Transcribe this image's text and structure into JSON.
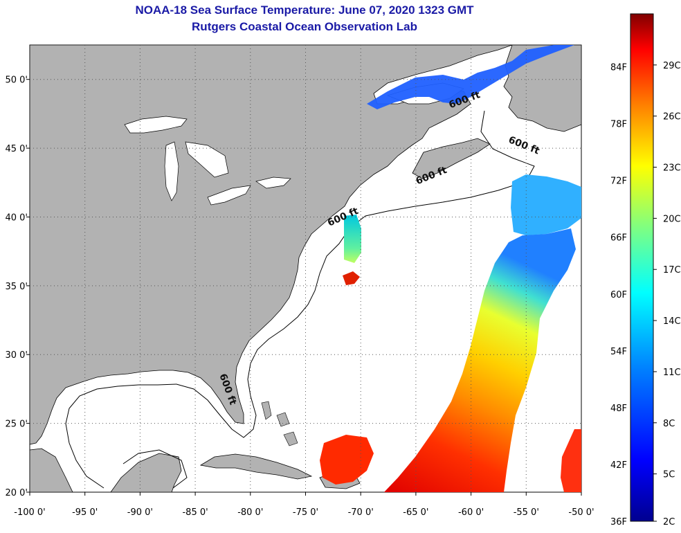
{
  "header": {
    "title": "NOAA-18 Sea Surface Temperature:  June 07, 2020 1323 GMT",
    "subtitle": "Rutgers Coastal Ocean Observation Lab"
  },
  "map": {
    "lon_range": [
      -100,
      -50
    ],
    "lat_range": [
      20,
      52.5
    ],
    "lon_ticks": [
      {
        "value": -100,
        "label": "-100 0'"
      },
      {
        "value": -95,
        "label": "-95 0'"
      },
      {
        "value": -90,
        "label": "-90 0'"
      },
      {
        "value": -85,
        "label": "-85 0'"
      },
      {
        "value": -80,
        "label": "-80 0'"
      },
      {
        "value": -75,
        "label": "-75 0'"
      },
      {
        "value": -70,
        "label": "-70 0'"
      },
      {
        "value": -65,
        "label": "-65 0'"
      },
      {
        "value": -60,
        "label": "-60 0'"
      },
      {
        "value": -55,
        "label": "-55 0'"
      },
      {
        "value": -50,
        "label": "-50 0'"
      }
    ],
    "lat_ticks": [
      {
        "value": 20,
        "label": "20 0'"
      },
      {
        "value": 25,
        "label": "25 0'"
      },
      {
        "value": 30,
        "label": "30 0'"
      },
      {
        "value": 35,
        "label": "35 0'"
      },
      {
        "value": 40,
        "label": "40 0'"
      },
      {
        "value": 45,
        "label": "45 0'"
      },
      {
        "value": 50,
        "label": "50 0'"
      }
    ],
    "grid": "dotted",
    "land_color": "#b2b2b2",
    "contour_labels": [
      {
        "text": "600 ft",
        "lon": -60.5,
        "lat": 48.3
      },
      {
        "text": "600 ft",
        "lon": -55.3,
        "lat": 45.0
      },
      {
        "text": "600 ft",
        "lon": -63.5,
        "lat": 42.8
      },
      {
        "text": "600 ft",
        "lon": -71.5,
        "lat": 39.8
      },
      {
        "text": "600 ft",
        "lon": -82.3,
        "lat": 27.4
      }
    ]
  },
  "colorbar": {
    "fahrenheit": [
      {
        "value": 84,
        "label": "84F"
      },
      {
        "value": 78,
        "label": "78F"
      },
      {
        "value": 72,
        "label": "72F"
      },
      {
        "value": 66,
        "label": "66F"
      },
      {
        "value": 60,
        "label": "60F"
      },
      {
        "value": 54,
        "label": "54F"
      },
      {
        "value": 48,
        "label": "48F"
      },
      {
        "value": 42,
        "label": "42F"
      },
      {
        "value": 36,
        "label": "36F"
      }
    ],
    "celsius": [
      {
        "value": 29,
        "label": "29C"
      },
      {
        "value": 26,
        "label": "26C"
      },
      {
        "value": 23,
        "label": "23C"
      },
      {
        "value": 20,
        "label": "20C"
      },
      {
        "value": 17,
        "label": "17C"
      },
      {
        "value": 14,
        "label": "14C"
      },
      {
        "value": 11,
        "label": "11C"
      },
      {
        "value": 8,
        "label": "8C"
      },
      {
        "value": 5,
        "label": "5C"
      },
      {
        "value": 2,
        "label": "2C"
      }
    ],
    "colors": [
      "#00008f",
      "#0000ff",
      "#0080ff",
      "#00ffff",
      "#80ff80",
      "#ffff00",
      "#ff8000",
      "#ff0000",
      "#800000"
    ]
  }
}
